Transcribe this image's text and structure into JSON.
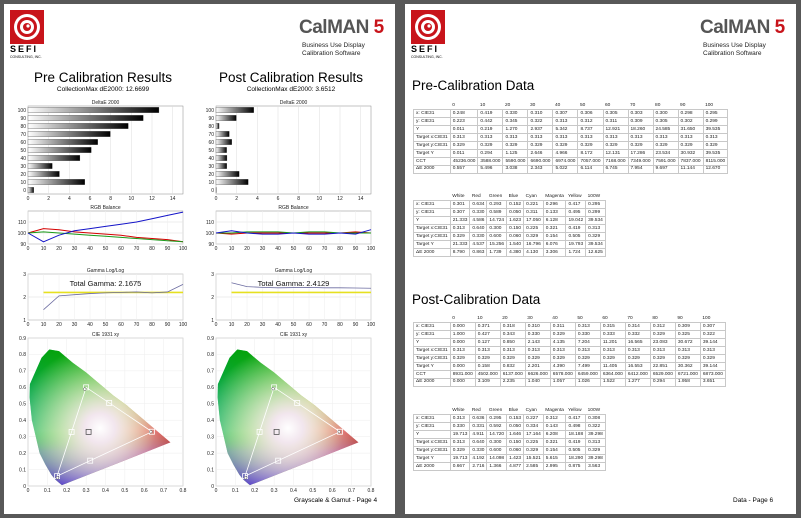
{
  "brand": {
    "logo_text": "SEFI",
    "logo_sub": "CONSULTING, INC.",
    "product": "CalMAN",
    "version": "5",
    "subtitle": [
      "Business Use Display",
      "Calibration Software"
    ]
  },
  "colors": {
    "brand_red": "#c8141b",
    "background": "#585858"
  },
  "left_page": {
    "footer": "Grayscale & Gamut - Page 4",
    "panels": [
      {
        "title": "Pre Calibration Results",
        "collection_max": "CollectionMax dE2000: 12.6699",
        "total_gamma": "Total Gamma: 2.1675"
      },
      {
        "title": "Post Calibration Results",
        "collection_max": "CollectionMax dE2000: 3.6512",
        "total_gamma": "Total Gamma: 2.4129"
      }
    ],
    "chart_titles": {
      "delta": "DeltaE 2000",
      "rgb": "RGB Balance",
      "gamma": "Gamma Log/Log",
      "cie": "CIE 1931 xy"
    }
  },
  "chart_data": [
    {
      "type": "bar",
      "title": "DeltaE 2000",
      "orientation": "horizontal",
      "categories": [
        "0",
        "10",
        "20",
        "30",
        "40",
        "50",
        "60",
        "70",
        "80",
        "90",
        "100"
      ],
      "series": [
        {
          "name": "Pre",
          "values": [
            0.557,
            5.496,
            3.038,
            2.343,
            5.022,
            6.114,
            6.745,
            7.954,
            9.697,
            11.144,
            12.67
          ]
        },
        {
          "name": "Post",
          "values": [
            0.0,
            3.109,
            2.235,
            1.04,
            1.057,
            1.026,
            1.522,
            1.277,
            0.294,
            1.958,
            3.651
          ]
        }
      ],
      "xlim": [
        0,
        15
      ],
      "xticks": [
        0,
        2,
        4,
        6,
        8,
        10,
        12,
        14
      ],
      "yticks": [
        "0",
        "10",
        "20",
        "30",
        "40",
        "50",
        "60",
        "70",
        "80",
        "90",
        "100"
      ]
    },
    {
      "type": "line",
      "title": "RGB Balance",
      "x": [
        0,
        10,
        20,
        30,
        40,
        50,
        60,
        70,
        80,
        90,
        100
      ],
      "ylim": [
        90,
        120
      ],
      "yticks": [
        90,
        100,
        110
      ],
      "xticks": [
        0,
        10,
        20,
        30,
        40,
        50,
        60,
        70,
        80,
        90,
        100
      ],
      "colors": {
        "r": "#d40000",
        "g": "#1a9a1a",
        "b": "#1414c8"
      },
      "series": [
        {
          "name": "Pre R",
          "values": [
            100,
            104,
            103,
            101,
            100,
            99,
            98,
            96,
            95,
            94,
            92
          ]
        },
        {
          "name": "Pre G",
          "values": [
            100,
            101,
            100,
            99,
            98,
            97,
            96,
            95,
            94,
            93,
            92
          ]
        },
        {
          "name": "Pre B",
          "values": [
            100,
            92,
            98,
            102,
            104,
            106,
            108,
            110,
            113,
            116,
            119
          ]
        },
        {
          "name": "Post R",
          "values": [
            100,
            99,
            100,
            100,
            100,
            100,
            100,
            100,
            100,
            101,
            100
          ]
        },
        {
          "name": "Post G",
          "values": [
            100,
            100,
            101,
            101,
            101,
            100,
            101,
            101,
            100,
            100,
            100
          ]
        },
        {
          "name": "Post B",
          "values": [
            100,
            102,
            100,
            99,
            99,
            100,
            99,
            99,
            100,
            99,
            103
          ]
        }
      ]
    },
    {
      "type": "line",
      "title": "Gamma Log/Log",
      "x": [
        10,
        20,
        30,
        40,
        50,
        60,
        70,
        80,
        90,
        100
      ],
      "ylim": [
        1,
        3
      ],
      "yticks": [
        1,
        2,
        3
      ],
      "xticks": [
        0,
        10,
        20,
        30,
        40,
        50,
        60,
        70,
        80,
        90,
        100
      ],
      "series": [
        {
          "name": "Pre",
          "values": [
            1.45,
            2.05,
            2.1,
            2.15,
            2.18,
            2.2,
            2.22,
            2.18,
            2.22,
            2.55
          ]
        },
        {
          "name": "Post",
          "values": [
            2.62,
            2.45,
            2.42,
            2.4,
            2.41,
            2.42,
            2.4,
            2.4,
            2.39,
            2.38
          ]
        },
        {
          "name": "Target",
          "values": [
            2.2,
            2.2,
            2.2,
            2.2,
            2.2,
            2.2,
            2.2,
            2.2,
            2.2,
            2.2
          ]
        }
      ]
    },
    {
      "type": "scatter",
      "title": "CIE 1931 xy",
      "xlim": [
        0,
        0.8
      ],
      "ylim": [
        0,
        0.9
      ],
      "xticks": [
        0,
        0.1,
        0.2,
        0.3,
        0.4,
        0.5,
        0.6,
        0.7,
        0.8
      ],
      "yticks": [
        0,
        0.1,
        0.2,
        0.3,
        0.4,
        0.5,
        0.6,
        0.7,
        0.8,
        0.9
      ],
      "gamut": {
        "red": [
          0.64,
          0.33
        ],
        "green": [
          0.3,
          0.6
        ],
        "blue": [
          0.15,
          0.06
        ],
        "white": [
          0.3127,
          0.329
        ]
      },
      "secondaries": {
        "cyan": [
          0.225,
          0.329
        ],
        "magenta": [
          0.321,
          0.154
        ],
        "yellow": [
          0.419,
          0.505
        ]
      },
      "measured_pre": {
        "red": [
          0.634,
          0.33
        ],
        "green": [
          0.293,
          0.589
        ],
        "blue": [
          0.152,
          0.05
        ]
      },
      "measured_post": {
        "red": [
          0.636,
          0.33
        ],
        "green": [
          0.295,
          0.592
        ],
        "blue": [
          0.153,
          0.05
        ]
      }
    }
  ],
  "right_page": {
    "footer": "Data - Page 6",
    "pre": {
      "title": "Pre-Calibration Data",
      "gray": {
        "header": [
          "",
          "0",
          "10",
          "20",
          "30",
          "40",
          "50",
          "60",
          "70",
          "80",
          "90",
          "100"
        ],
        "rows": [
          [
            "x: CIE31",
            "0.248",
            "0.419",
            "0.330",
            "0.310",
            "0.307",
            "0.306",
            "0.305",
            "0.303",
            "0.300",
            "0.298",
            "0.295"
          ],
          [
            "y: CIE31",
            "0.223",
            "0.442",
            "0.345",
            "0.322",
            "0.313",
            "0.312",
            "0.311",
            "0.309",
            "0.305",
            "0.302",
            "0.299"
          ],
          [
            "Y",
            "0.011",
            "0.219",
            "1.270",
            "2.937",
            "5.342",
            "8.737",
            "12.921",
            "18.260",
            "24.585",
            "31.650",
            "39.535"
          ],
          [
            "Target x:CIE31",
            "0.313",
            "0.313",
            "0.313",
            "0.313",
            "0.313",
            "0.313",
            "0.313",
            "0.313",
            "0.313",
            "0.313",
            "0.313"
          ],
          [
            "Target y:CIE31",
            "0.329",
            "0.329",
            "0.329",
            "0.329",
            "0.329",
            "0.329",
            "0.329",
            "0.329",
            "0.329",
            "0.329",
            "0.329"
          ],
          [
            "Target Y",
            "0.011",
            "0.294",
            "1.125",
            "2.646",
            "4.966",
            "8.172",
            "12.131",
            "17.286",
            "23.534",
            "30.932",
            "39.535"
          ],
          [
            "CCT",
            "45236.000",
            "3588.000",
            "5590.000",
            "6690.000",
            "6974.000",
            "7057.000",
            "7168.000",
            "7349.000",
            "7591.000",
            "7837.000",
            "8115.000"
          ],
          [
            "ΔE 2000",
            "0.557",
            "5.496",
            "3.038",
            "2.343",
            "5.022",
            "6.114",
            "6.745",
            "7.954",
            "9.697",
            "11.144",
            "12.670"
          ]
        ]
      },
      "colors": {
        "header": [
          "",
          "White",
          "Red",
          "Green",
          "Blue",
          "Cyan",
          "Magenta",
          "Yellow",
          "100W"
        ],
        "rows": [
          [
            "x: CIE31",
            "0.301",
            "0.634",
            "0.293",
            "0.152",
            "0.221",
            "0.296",
            "0.417",
            "0.295"
          ],
          [
            "y: CIE31",
            "0.307",
            "0.330",
            "0.589",
            "0.050",
            "0.311",
            "0.133",
            "0.495",
            "0.299"
          ],
          [
            "Y",
            "21.333",
            "4.586",
            "14.724",
            "1.623",
            "17.050",
            "6.128",
            "19.042",
            "39.534"
          ],
          [
            "Target x:CIE31",
            "0.313",
            "0.640",
            "0.300",
            "0.150",
            "0.225",
            "0.321",
            "0.419",
            "0.313"
          ],
          [
            "Target y:CIE31",
            "0.329",
            "0.330",
            "0.600",
            "0.060",
            "0.329",
            "0.154",
            "0.505",
            "0.329"
          ],
          [
            "Target Y",
            "21.333",
            "4.537",
            "15.256",
            "1.540",
            "16.796",
            "6.076",
            "19.793",
            "39.534"
          ],
          [
            "ΔE 2000",
            "8.790",
            "0.863",
            "1.739",
            "4.380",
            "4.130",
            "3.306",
            "1.724",
            "12.625"
          ]
        ]
      }
    },
    "post": {
      "title": "Post-Calibration Data",
      "gray": {
        "header": [
          "",
          "0",
          "10",
          "20",
          "30",
          "40",
          "50",
          "60",
          "70",
          "80",
          "90",
          "100"
        ],
        "rows": [
          [
            "x: CIE31",
            "0.000",
            "0.371",
            "0.318",
            "0.310",
            "0.311",
            "0.313",
            "0.315",
            "0.314",
            "0.312",
            "0.309",
            "0.307"
          ],
          [
            "y: CIE31",
            "1.000",
            "0.427",
            "0.343",
            "0.330",
            "0.329",
            "0.330",
            "0.333",
            "0.332",
            "0.329",
            "0.325",
            "0.322"
          ],
          [
            "Y",
            "0.000",
            "0.127",
            "0.850",
            "2.143",
            "4.135",
            "7.204",
            "11.201",
            "16.565",
            "23.083",
            "30.672",
            "39.144"
          ],
          [
            "Target x:CIE31",
            "0.313",
            "0.313",
            "0.313",
            "0.313",
            "0.313",
            "0.313",
            "0.313",
            "0.313",
            "0.313",
            "0.313",
            "0.313"
          ],
          [
            "Target y:CIE31",
            "0.329",
            "0.329",
            "0.329",
            "0.329",
            "0.329",
            "0.329",
            "0.329",
            "0.329",
            "0.329",
            "0.329",
            "0.329"
          ],
          [
            "Target Y",
            "0.000",
            "0.158",
            "0.832",
            "2.201",
            "4.390",
            "7.499",
            "11.405",
            "16.553",
            "22.851",
            "30.362",
            "39.144"
          ],
          [
            "CCT",
            "8931.000",
            "4502.000",
            "6137.000",
            "6626.000",
            "6578.000",
            "6459.000",
            "6364.000",
            "6412.000",
            "6529.000",
            "6721.000",
            "6873.000"
          ],
          [
            "ΔE 2000",
            "0.000",
            "3.109",
            "2.235",
            "1.040",
            "1.057",
            "1.026",
            "1.522",
            "1.277",
            "0.294",
            "1.958",
            "3.651"
          ]
        ]
      },
      "colors": {
        "header": [
          "",
          "White",
          "Red",
          "Green",
          "Blue",
          "Cyan",
          "Magenta",
          "Yellow",
          "100W"
        ],
        "rows": [
          [
            "x: CIE31",
            "0.313",
            "0.636",
            "0.295",
            "0.153",
            "0.227",
            "0.312",
            "0.417",
            "0.308"
          ],
          [
            "y: CIE31",
            "0.330",
            "0.331",
            "0.592",
            "0.050",
            "0.334",
            "0.143",
            "0.498",
            "0.322"
          ],
          [
            "Y",
            "19.713",
            "4.911",
            "14.720",
            "1.646",
            "17.164",
            "6.208",
            "18.188",
            "39.298"
          ],
          [
            "Target x:CIE31",
            "0.313",
            "0.640",
            "0.300",
            "0.150",
            "0.225",
            "0.321",
            "0.419",
            "0.313"
          ],
          [
            "Target y:CIE31",
            "0.329",
            "0.330",
            "0.600",
            "0.060",
            "0.329",
            "0.154",
            "0.505",
            "0.329"
          ],
          [
            "Target Y",
            "19.713",
            "4.192",
            "14.098",
            "1.423",
            "15.521",
            "5.615",
            "18.290",
            "39.298"
          ],
          [
            "ΔE 2000",
            "0.667",
            "2.716",
            "1.366",
            "4.877",
            "2.585",
            "2.995",
            "0.875",
            "3.563"
          ]
        ]
      }
    }
  }
}
